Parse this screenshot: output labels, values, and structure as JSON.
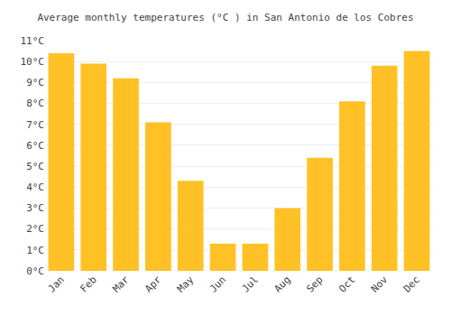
{
  "chart_data": {
    "type": "bar",
    "title": "Average monthly temperatures (°C ) in San Antonio de los Cobres",
    "categories": [
      "Jan",
      "Feb",
      "Mar",
      "Apr",
      "May",
      "Jun",
      "Jul",
      "Aug",
      "Sep",
      "Oct",
      "Nov",
      "Dec"
    ],
    "values": [
      10.4,
      9.9,
      9.2,
      7.1,
      4.3,
      1.3,
      1.3,
      3.0,
      5.4,
      8.1,
      9.8,
      10.5
    ],
    "color": "#FFC125",
    "ylim": [
      0,
      11
    ],
    "yticks": [
      {
        "value": 0,
        "label": "0°C"
      },
      {
        "value": 1,
        "label": "1°C"
      },
      {
        "value": 2,
        "label": "2°C"
      },
      {
        "value": 3,
        "label": "3°C"
      },
      {
        "value": 4,
        "label": "4°C"
      },
      {
        "value": 5,
        "label": "5°C"
      },
      {
        "value": 6,
        "label": "6°C"
      },
      {
        "value": 7,
        "label": "7°C"
      },
      {
        "value": 8,
        "label": "8°C"
      },
      {
        "value": 9,
        "label": "9°C"
      },
      {
        "value": 10,
        "label": "10°C"
      },
      {
        "value": 11,
        "label": "11°C"
      }
    ],
    "grid": true
  }
}
